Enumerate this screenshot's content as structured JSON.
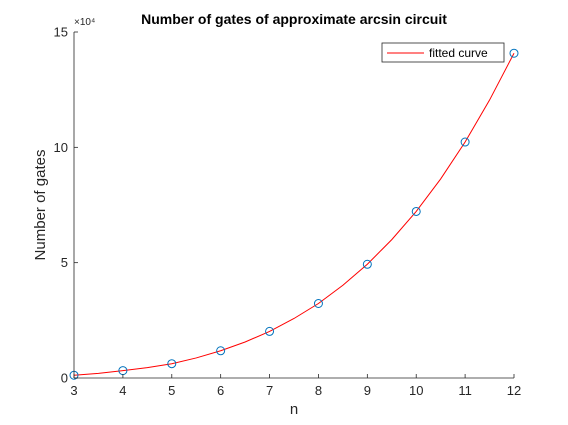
{
  "chart_data": {
    "type": "line",
    "title": "Number of gates of approximate arcsin circuit",
    "xlabel": "n",
    "ylabel": "Number of gates",
    "xlim": [
      3,
      12
    ],
    "ylim": [
      0,
      150000
    ],
    "x_ticks": [
      3,
      4,
      5,
      6,
      7,
      8,
      9,
      10,
      11,
      12
    ],
    "y_ticks": [
      0,
      50000,
      100000,
      150000
    ],
    "y_tick_labels": [
      "0",
      "5",
      "10",
      "15"
    ],
    "y_exponent_label": "×10⁴",
    "grid": false,
    "legend_position": "top-right",
    "series": [
      {
        "type": "scatter",
        "marker": "circle",
        "color": "#0072BD",
        "x": [
          3,
          4,
          5,
          6,
          7,
          8,
          9,
          10,
          11,
          12
        ],
        "y": [
          1200,
          3200,
          6200,
          11800,
          20200,
          32300,
          49300,
          72200,
          102300,
          140800
        ]
      },
      {
        "type": "line",
        "name": "fitted curve",
        "color": "#FF0000",
        "x": [
          3,
          3.5,
          4,
          4.5,
          5,
          5.5,
          6,
          6.5,
          7,
          7.5,
          8,
          8.5,
          9,
          9.5,
          10,
          10.5,
          11,
          11.5,
          12
        ],
        "y": [
          1200,
          2000,
          3200,
          4500,
          6200,
          8700,
          11800,
          15600,
          20200,
          25800,
          32300,
          40200,
          49300,
          60000,
          72200,
          86300,
          102300,
          120500,
          140800
        ]
      }
    ]
  }
}
